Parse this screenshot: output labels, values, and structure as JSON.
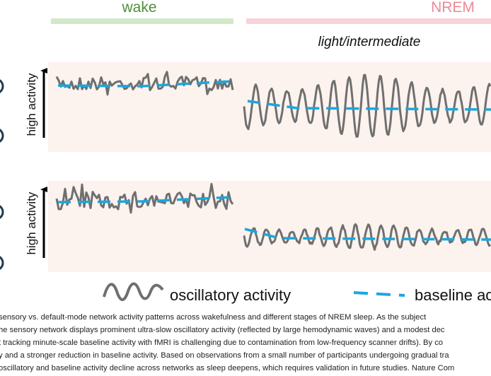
{
  "header": {
    "wake": "wake",
    "nrem": "NREM",
    "stage": "light/intermediate"
  },
  "panels": [
    {
      "y_label": "high activity"
    },
    {
      "y_label": "high activity"
    }
  ],
  "legend": {
    "oscillatory": "oscillatory activity",
    "baseline": "baseline ac"
  },
  "caption": [
    "sensory vs. default-mode network activity patterns across wakefulness and different stages of NREM sleep. As the subject",
    "he sensory network displays prominent ultra-slow oscillatory activity (reflected by large hemodynamic waves) and a modest dec",
    "t tracking minute-scale baseline activity with fMRI is challenging due to contamination from low-frequency scanner drifts). By co",
    "y and a stronger reduction in baseline activity. Based on observations from a small number of participants undergoing gradual tra",
    "oscillatory and baseline activity decline across networks as sleep deepens, which requires validation in future studies. Nature Com"
  ]
}
